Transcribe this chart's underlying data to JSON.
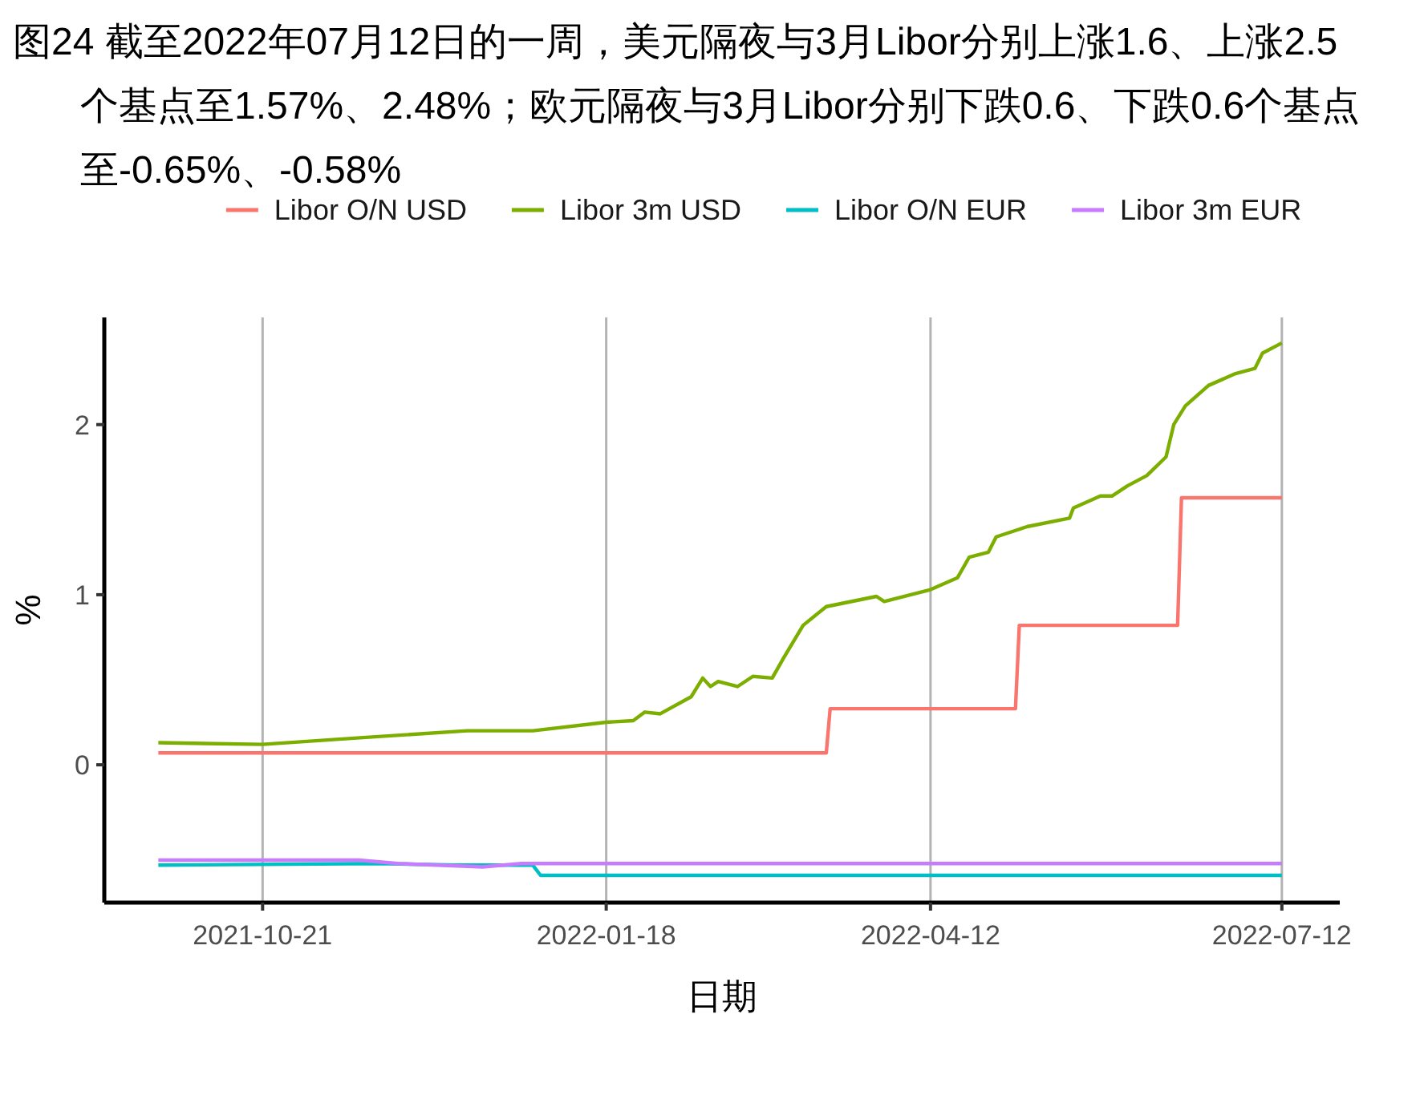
{
  "chart_data": {
    "type": "line",
    "title": "图24  截至2022年07月12日的一周，美元隔夜与3月Libor分别上涨1.6、上涨2.5个基点至1.57%、2.48%；欧元隔夜与3月Libor分别下跌0.6、下跌0.6个基点至-0.65%、-0.58%",
    "xlabel": "日期",
    "ylabel": "%",
    "xlim": [
      "2021-09-10",
      "2022-07-27"
    ],
    "xticks": [
      {
        "value": "2021-10-21",
        "label": "2021-10-21"
      },
      {
        "value": "2022-01-18",
        "label": "2022-01-18"
      },
      {
        "value": "2022-04-12",
        "label": "2022-04-12"
      },
      {
        "value": "2022-07-12",
        "label": "2022-07-12"
      }
    ],
    "ylim": [
      -0.81,
      2.63
    ],
    "yticks": [
      0,
      1,
      2
    ],
    "grid": "x",
    "legend": "top",
    "line_style": "solid",
    "marker": "none",
    "series": [
      {
        "name": "Libor O/N USD",
        "color": "#f8766d",
        "x": [
          "2021-09-24",
          "2022-03-16",
          "2022-03-17",
          "2022-05-04",
          "2022-05-05",
          "2022-06-15",
          "2022-06-16",
          "2022-07-12"
        ],
        "values": [
          0.07,
          0.07,
          0.33,
          0.33,
          0.82,
          0.82,
          1.57,
          1.57
        ]
      },
      {
        "name": "Libor 3m USD",
        "color": "#7cae00",
        "x": [
          "2021-09-24",
          "2021-10-21",
          "2021-11-16",
          "2021-12-13",
          "2021-12-30",
          "2022-01-18",
          "2022-01-25",
          "2022-01-28",
          "2022-02-01",
          "2022-02-09",
          "2022-02-12",
          "2022-02-14",
          "2022-02-16",
          "2022-02-21",
          "2022-02-25",
          "2022-03-02",
          "2022-03-05",
          "2022-03-10",
          "2022-03-16",
          "2022-03-29",
          "2022-03-31",
          "2022-04-12",
          "2022-04-19",
          "2022-04-22",
          "2022-04-27",
          "2022-04-29",
          "2022-05-07",
          "2022-05-18",
          "2022-05-19",
          "2022-05-26",
          "2022-05-29",
          "2022-06-02",
          "2022-06-07",
          "2022-06-12",
          "2022-06-14",
          "2022-06-17",
          "2022-06-23",
          "2022-06-30",
          "2022-07-05",
          "2022-07-07",
          "2022-07-12"
        ],
        "values": [
          0.13,
          0.12,
          0.16,
          0.2,
          0.2,
          0.25,
          0.26,
          0.31,
          0.3,
          0.4,
          0.51,
          0.46,
          0.49,
          0.46,
          0.52,
          0.51,
          0.63,
          0.82,
          0.93,
          0.99,
          0.96,
          1.03,
          1.1,
          1.22,
          1.25,
          1.34,
          1.4,
          1.45,
          1.51,
          1.58,
          1.58,
          1.64,
          1.7,
          1.81,
          2.0,
          2.11,
          2.23,
          2.3,
          2.33,
          2.42,
          2.48
        ]
      },
      {
        "name": "Libor O/N EUR",
        "color": "#00bfc4",
        "x": [
          "2021-09-24",
          "2021-11-20",
          "2021-12-10",
          "2021-12-30",
          "2022-01-01",
          "2022-07-12"
        ],
        "values": [
          -0.59,
          -0.58,
          -0.59,
          -0.59,
          -0.65,
          -0.65
        ]
      },
      {
        "name": "Libor 3m EUR",
        "color": "#c77cff",
        "x": [
          "2021-09-24",
          "2021-11-15",
          "2021-11-25",
          "2021-12-17",
          "2021-12-27",
          "2022-07-12"
        ],
        "values": [
          -0.56,
          -0.56,
          -0.58,
          -0.6,
          -0.58,
          -0.58
        ]
      }
    ]
  }
}
